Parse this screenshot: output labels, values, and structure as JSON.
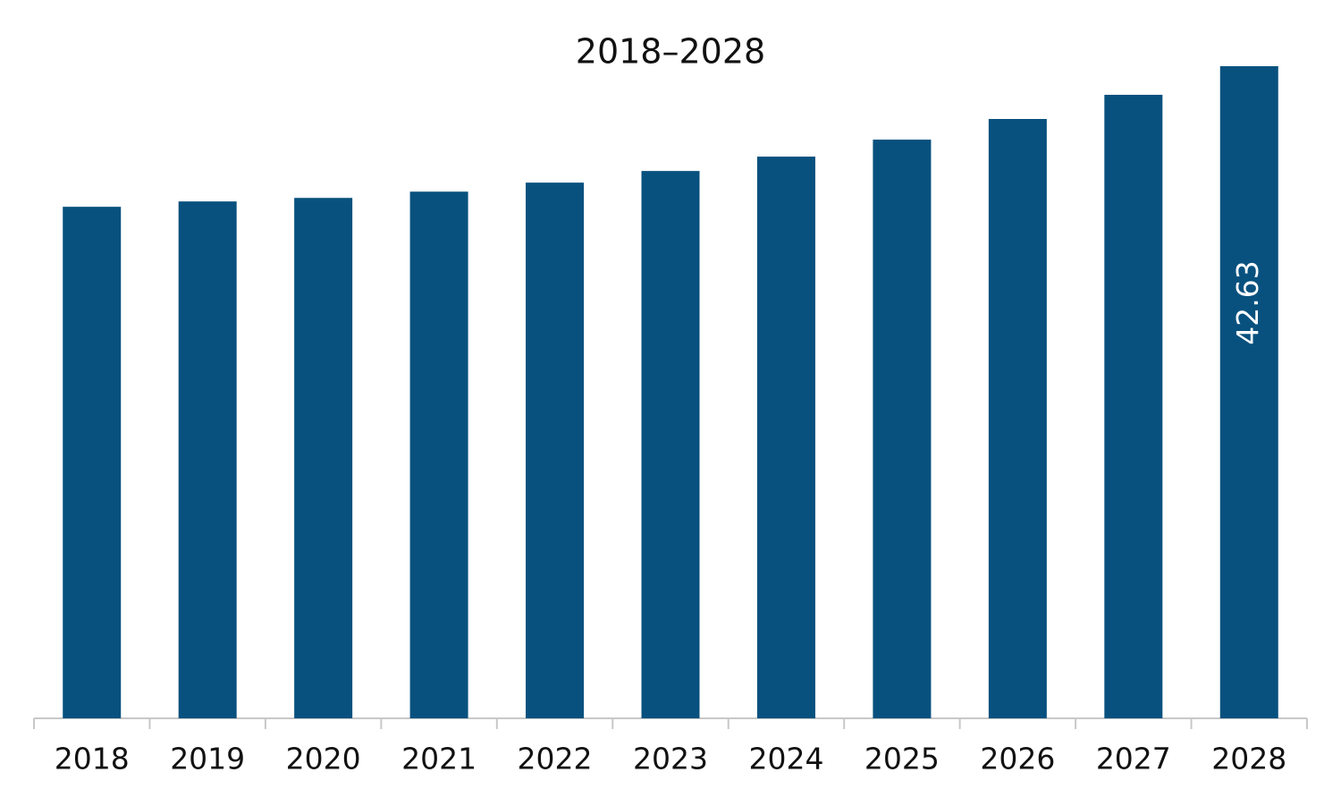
{
  "chart_data": {
    "type": "bar",
    "title": "2018–2028",
    "categories": [
      "2018",
      "2019",
      "2020",
      "2021",
      "2022",
      "2023",
      "2024",
      "2025",
      "2026",
      "2027",
      "2028"
    ],
    "values": [
      33.44,
      33.79,
      34.02,
      34.43,
      35.02,
      35.78,
      36.72,
      37.83,
      39.18,
      40.76,
      42.63
    ],
    "value_labels": [
      null,
      null,
      null,
      null,
      null,
      null,
      null,
      null,
      null,
      null,
      "42.63"
    ],
    "color": "#08517e"
  }
}
